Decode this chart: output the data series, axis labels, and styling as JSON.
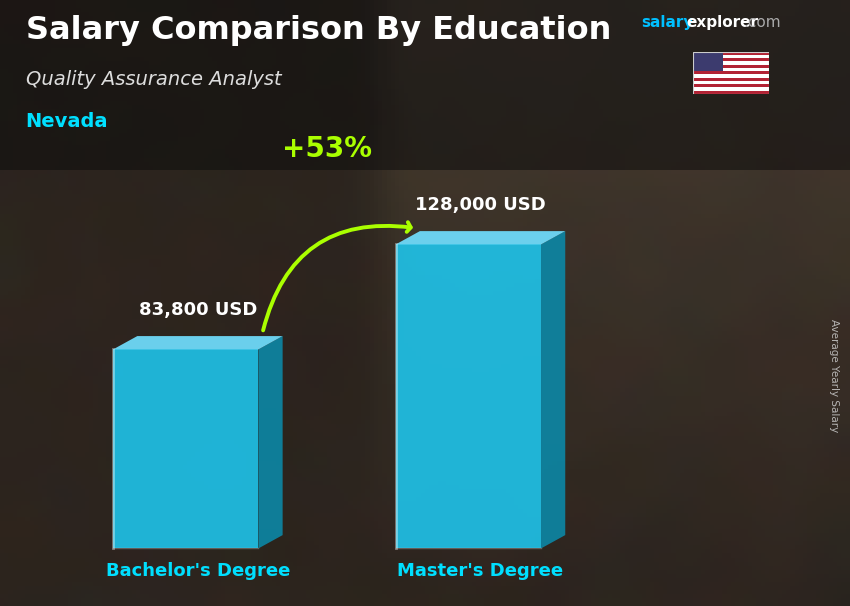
{
  "title": "Salary Comparison By Education",
  "subtitle": "Quality Assurance Analyst",
  "location": "Nevada",
  "categories": [
    "Bachelor's Degree",
    "Master's Degree"
  ],
  "values": [
    83800,
    128000
  ],
  "value_labels": [
    "83,800 USD",
    "128,000 USD"
  ],
  "bar_color_face": "#1EC8F0",
  "bar_color_dark": "#0B8AAA",
  "bar_color_top": "#70DFFF",
  "bar_color_left": "#55D5F5",
  "pct_change": "+53%",
  "ylabel": "Average Yearly Salary",
  "title_color": "#ffffff",
  "subtitle_color": "#dddddd",
  "location_color": "#00DFFF",
  "salary_color": "#00BFFF",
  "explorer_color": "#ffffff",
  "com_color": "#aaaaaa",
  "label_color": "#ffffff",
  "xlabel_color": "#00DFFF",
  "pct_color": "#aaff00",
  "pct_arrow_color": "#aaff00",
  "ylabel_color": "#cccccc",
  "figsize": [
    8.5,
    6.06
  ],
  "dpi": 100
}
